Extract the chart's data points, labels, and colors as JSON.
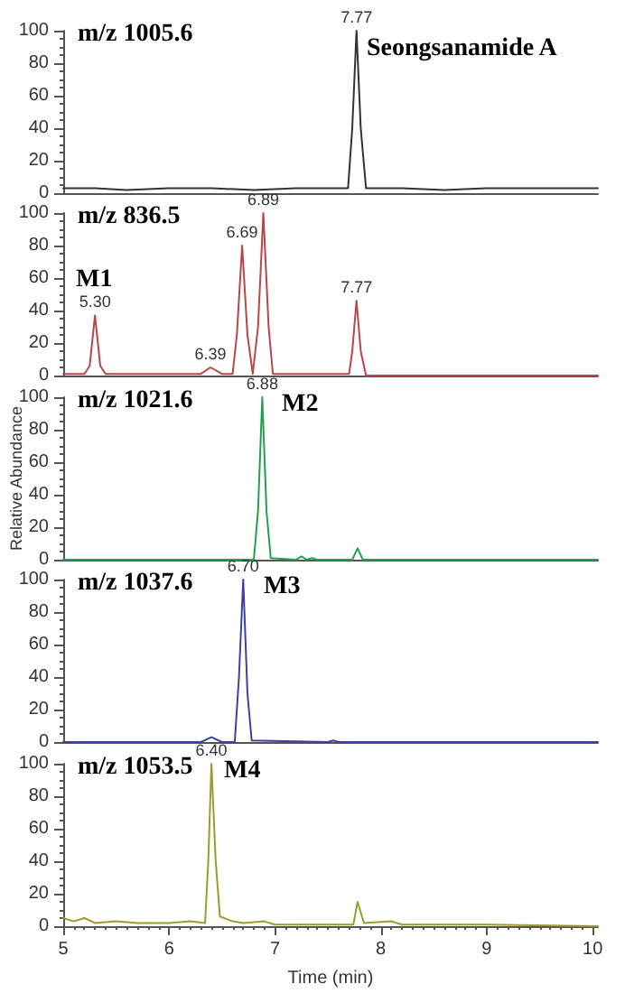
{
  "chart_data": [
    {
      "type": "line",
      "title": "m/z 1005.6",
      "subtitle": "Seongsanamide A",
      "xlim": [
        5,
        10.05
      ],
      "xticks": [
        5,
        6,
        7,
        8,
        9,
        10
      ],
      "ylim": [
        0,
        100
      ],
      "yticks": [
        0,
        20,
        40,
        60,
        80,
        100
      ],
      "tick_labels": "y",
      "grid": false,
      "marker": "none",
      "annotations": [
        {
          "text": "7.77",
          "x": 7.77,
          "y": 100
        }
      ],
      "series": [
        {
          "color": "#333333",
          "x": [
            5,
            5.3,
            5.6,
            6,
            6.4,
            6.8,
            7.2,
            7.6,
            7.69,
            7.73,
            7.77,
            7.81,
            7.86,
            8.2,
            8.6,
            9,
            9.4,
            9.8,
            10.05
          ],
          "values": [
            3,
            3,
            2,
            3,
            3,
            2,
            3,
            3,
            3,
            40,
            100,
            40,
            3,
            3,
            2,
            3,
            3,
            3,
            3
          ]
        }
      ]
    },
    {
      "type": "line",
      "title": "m/z 836.5",
      "subtitle": "M1",
      "xlim": [
        5,
        10.05
      ],
      "xticks": [
        5,
        6,
        7,
        8,
        9,
        10
      ],
      "ylim": [
        0,
        100
      ],
      "yticks": [
        0,
        20,
        40,
        60,
        80,
        100
      ],
      "tick_labels": "y",
      "grid": false,
      "marker": "none",
      "annotations": [
        {
          "text": "5.30",
          "x": 5.3,
          "y": 37
        },
        {
          "text": "6.39",
          "x": 6.39,
          "y": 5
        },
        {
          "text": "6.69",
          "x": 6.69,
          "y": 80
        },
        {
          "text": "6.89",
          "x": 6.89,
          "y": 100
        },
        {
          "text": "7.77",
          "x": 7.77,
          "y": 46
        }
      ],
      "series": [
        {
          "color": "#b8464a",
          "x": [
            5,
            5.2,
            5.25,
            5.3,
            5.35,
            5.4,
            5.7,
            6.3,
            6.39,
            6.5,
            6.6,
            6.64,
            6.69,
            6.74,
            6.79,
            6.84,
            6.89,
            6.94,
            6.98,
            7.1,
            7.7,
            7.73,
            7.77,
            7.81,
            7.86,
            10.05
          ],
          "values": [
            1,
            1,
            6,
            37,
            6,
            1,
            1,
            1,
            5,
            1,
            1,
            25,
            80,
            25,
            1,
            30,
            100,
            30,
            1,
            1,
            1,
            15,
            46,
            15,
            0,
            0
          ]
        }
      ]
    },
    {
      "type": "line",
      "title": "m/z 1021.6",
      "subtitle": "M2",
      "ylabel": "Relative Abundance",
      "xlim": [
        5,
        10.05
      ],
      "xticks": [
        5,
        6,
        7,
        8,
        9,
        10
      ],
      "ylim": [
        0,
        100
      ],
      "yticks": [
        0,
        20,
        40,
        60,
        80,
        100
      ],
      "tick_labels": "y",
      "grid": false,
      "marker": "none",
      "annotations": [
        {
          "text": "6.88",
          "x": 6.88,
          "y": 100
        }
      ],
      "series": [
        {
          "color": "#23a04f",
          "x": [
            5,
            6.8,
            6.84,
            6.88,
            6.92,
            6.96,
            7.2,
            7.25,
            7.3,
            7.35,
            7.4,
            7.73,
            7.78,
            7.83,
            10.05
          ],
          "values": [
            0,
            0,
            30,
            100,
            30,
            1,
            0,
            2,
            0,
            1,
            0,
            0,
            7,
            0,
            0
          ]
        }
      ]
    },
    {
      "type": "line",
      "title": "m/z 1037.6",
      "subtitle": "M3",
      "xlim": [
        5,
        10.05
      ],
      "xticks": [
        5,
        6,
        7,
        8,
        9,
        10
      ],
      "ylim": [
        0,
        100
      ],
      "yticks": [
        0,
        20,
        40,
        60,
        80,
        100
      ],
      "tick_labels": "y",
      "grid": false,
      "marker": "none",
      "annotations": [
        {
          "text": "6.70",
          "x": 6.7,
          "y": 100
        }
      ],
      "series": [
        {
          "color": "#3e41a3",
          "x": [
            5,
            6.3,
            6.4,
            6.5,
            6.62,
            6.66,
            6.7,
            6.74,
            6.78,
            7.5,
            7.55,
            7.6,
            10.05
          ],
          "values": [
            0,
            0,
            3,
            0,
            0,
            40,
            100,
            30,
            1,
            0,
            1,
            0,
            0
          ]
        }
      ]
    },
    {
      "type": "line",
      "title": "m/z 1053.5",
      "subtitle": "M4",
      "xlabel": "Time (min)",
      "xlim": [
        5,
        10.05
      ],
      "xticks": [
        5,
        6,
        7,
        8,
        9,
        10
      ],
      "ylim": [
        0,
        100
      ],
      "yticks": [
        0,
        20,
        40,
        60,
        80,
        100
      ],
      "grid": false,
      "marker": "none",
      "annotations": [
        {
          "text": "6.40",
          "x": 6.4,
          "y": 100
        }
      ],
      "series": [
        {
          "color": "#9c9c2e",
          "x": [
            5,
            5.1,
            5.2,
            5.3,
            5.5,
            5.7,
            6,
            6.2,
            6.34,
            6.37,
            6.4,
            6.44,
            6.48,
            6.6,
            6.7,
            6.9,
            7,
            7.5,
            7.74,
            7.78,
            7.84,
            8.1,
            8.2,
            9,
            10.05
          ],
          "values": [
            5,
            3,
            5,
            2,
            3,
            2,
            2,
            3,
            2,
            40,
            100,
            40,
            6,
            3,
            2,
            3,
            1,
            1,
            1,
            15,
            2,
            3,
            1,
            1,
            0
          ]
        }
      ]
    }
  ]
}
